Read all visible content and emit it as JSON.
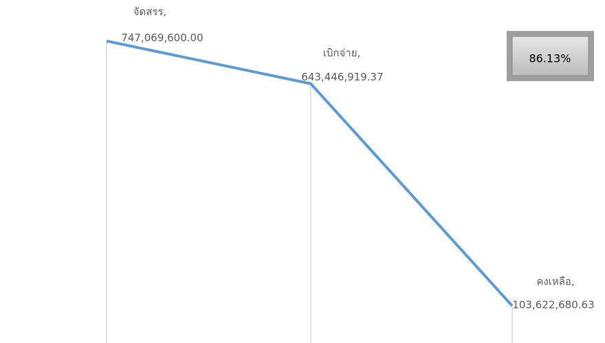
{
  "chart_data": {
    "type": "line",
    "categories": [
      "จัดสรร,",
      "เบิกจ่าย,",
      "คงเหลือ,"
    ],
    "values": [
      747069600.0,
      643446919.37,
      103622680.63
    ],
    "value_labels": [
      "747,069,600.00",
      "643,446,919.37",
      "103,622,680.63"
    ],
    "color": "#5b9bd5",
    "ylim": [
      0,
      800000000
    ],
    "annotation": "86.13%"
  }
}
